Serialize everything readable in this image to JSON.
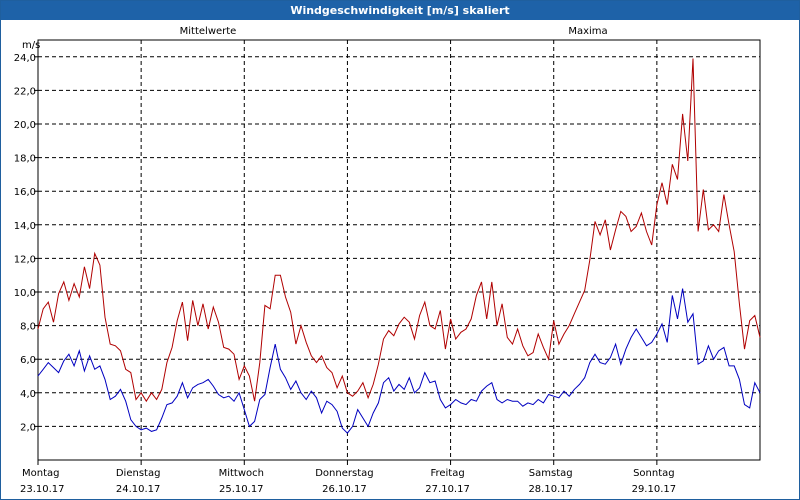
{
  "window": {
    "title": "Windgeschwindigkeit [m/s] skaliert"
  },
  "chart_data": {
    "type": "line",
    "title": "Windgeschwindigkeit [m/s] skaliert",
    "ylabel": "m/s",
    "ylim": [
      0,
      25
    ],
    "grid": true,
    "yticks": [
      2,
      4,
      6,
      8,
      10,
      12,
      14,
      16,
      18,
      20,
      22,
      24
    ],
    "ytick_labels": [
      "2,0",
      "4,0",
      "6,0",
      "8,0",
      "10,0",
      "12,0",
      "14,0",
      "16,0",
      "18,0",
      "20,0",
      "22,0",
      "24,0"
    ],
    "days": [
      {
        "weekday": "Montag",
        "date": "23.10.17"
      },
      {
        "weekday": "Dienstag",
        "date": "24.10.17"
      },
      {
        "weekday": "Mittwoch",
        "date": "25.10.17"
      },
      {
        "weekday": "Donnerstag",
        "date": "26.10.17"
      },
      {
        "weekday": "Freitag",
        "date": "27.10.17"
      },
      {
        "weekday": "Samstag",
        "date": "28.10.17"
      },
      {
        "weekday": "Sonntag",
        "date": "29.10.17"
      }
    ],
    "xlim": [
      0,
      7
    ],
    "series": [
      {
        "name": "Mittelwerte",
        "color": "#0000c0",
        "x": [
          0,
          0.05,
          0.1,
          0.15,
          0.2,
          0.25,
          0.3,
          0.35,
          0.4,
          0.45,
          0.5,
          0.55,
          0.6,
          0.65,
          0.7,
          0.75,
          0.8,
          0.85,
          0.9,
          0.95,
          1.0,
          1.05,
          1.1,
          1.15,
          1.2,
          1.25,
          1.3,
          1.35,
          1.4,
          1.45,
          1.5,
          1.55,
          1.6,
          1.65,
          1.7,
          1.75,
          1.8,
          1.85,
          1.9,
          1.95,
          2.0,
          2.05,
          2.1,
          2.15,
          2.2,
          2.25,
          2.3,
          2.35,
          2.4,
          2.45,
          2.5,
          2.55,
          2.6,
          2.65,
          2.7,
          2.75,
          2.8,
          2.85,
          2.9,
          2.95,
          3.0,
          3.05,
          3.1,
          3.15,
          3.2,
          3.25,
          3.3,
          3.35,
          3.4,
          3.45,
          3.5,
          3.55,
          3.6,
          3.65,
          3.7,
          3.75,
          3.8,
          3.85,
          3.9,
          3.95,
          4.0,
          4.05,
          4.1,
          4.15,
          4.2,
          4.25,
          4.3,
          4.35,
          4.4,
          4.45,
          4.5,
          4.55,
          4.6,
          4.65,
          4.7,
          4.75,
          4.8,
          4.85,
          4.9,
          4.95,
          5.0,
          5.05,
          5.1,
          5.15,
          5.2,
          5.25,
          5.3,
          5.35,
          5.4,
          5.45,
          5.5,
          5.55,
          5.6,
          5.65,
          5.7,
          5.75,
          5.8,
          5.85,
          5.9,
          5.95,
          6.0,
          6.05,
          6.1,
          6.15,
          6.2,
          6.25,
          6.3,
          6.35,
          6.4,
          6.45,
          6.5,
          6.55,
          6.6,
          6.65,
          6.7,
          6.75,
          6.8,
          6.85,
          6.9,
          6.95,
          7.0
        ],
        "values": [
          5.0,
          5.4,
          5.8,
          5.5,
          5.2,
          5.9,
          6.3,
          5.6,
          6.5,
          5.3,
          6.2,
          5.4,
          5.6,
          4.8,
          3.6,
          3.8,
          4.2,
          3.5,
          2.4,
          2.0,
          1.8,
          1.9,
          1.7,
          1.8,
          2.5,
          3.3,
          3.4,
          3.8,
          4.6,
          3.7,
          4.3,
          4.5,
          4.6,
          4.8,
          4.4,
          3.9,
          3.7,
          3.8,
          3.5,
          4.0,
          3.0,
          2.0,
          2.3,
          3.6,
          3.9,
          5.5,
          6.9,
          5.4,
          4.9,
          4.2,
          4.7,
          4.0,
          3.6,
          4.1,
          3.7,
          2.8,
          3.5,
          3.3,
          2.9,
          1.9,
          1.6,
          2.0,
          3.0,
          2.5,
          2.0,
          2.8,
          3.4,
          4.6,
          4.9,
          4.1,
          4.5,
          4.2,
          4.9,
          4.0,
          4.3,
          5.2,
          4.6,
          4.7,
          3.6,
          3.1,
          3.3,
          3.6,
          3.4,
          3.3,
          3.6,
          3.5,
          4.1,
          4.4,
          4.6,
          3.6,
          3.4,
          3.6,
          3.5,
          3.5,
          3.2,
          3.4,
          3.3,
          3.6,
          3.4,
          3.9,
          3.8,
          3.7,
          4.1,
          3.8,
          4.2,
          4.5,
          4.9,
          5.8,
          6.3,
          5.8,
          5.7,
          6.1,
          6.9,
          5.7,
          6.6,
          7.3,
          7.8,
          7.3,
          6.8,
          7.0,
          7.5,
          8.1,
          7.0,
          9.8,
          8.4,
          10.2,
          8.2,
          8.7,
          5.7,
          5.9,
          6.8,
          6.0,
          6.5,
          6.7,
          5.6,
          5.6,
          4.8,
          3.3,
          3.1,
          4.6,
          4.0
        ]
      },
      {
        "name": "Maxima",
        "color": "#b00000",
        "x": [
          0,
          0.05,
          0.1,
          0.15,
          0.2,
          0.25,
          0.3,
          0.35,
          0.4,
          0.45,
          0.5,
          0.55,
          0.6,
          0.65,
          0.7,
          0.75,
          0.8,
          0.85,
          0.9,
          0.95,
          1.0,
          1.05,
          1.1,
          1.15,
          1.2,
          1.25,
          1.3,
          1.35,
          1.4,
          1.45,
          1.5,
          1.55,
          1.6,
          1.65,
          1.7,
          1.75,
          1.8,
          1.85,
          1.9,
          1.95,
          2.0,
          2.05,
          2.1,
          2.15,
          2.2,
          2.25,
          2.3,
          2.35,
          2.4,
          2.45,
          2.5,
          2.55,
          2.6,
          2.65,
          2.7,
          2.75,
          2.8,
          2.85,
          2.9,
          2.95,
          3.0,
          3.05,
          3.1,
          3.15,
          3.2,
          3.25,
          3.3,
          3.35,
          3.4,
          3.45,
          3.5,
          3.55,
          3.6,
          3.65,
          3.7,
          3.75,
          3.8,
          3.85,
          3.9,
          3.95,
          4.0,
          4.05,
          4.1,
          4.15,
          4.2,
          4.25,
          4.3,
          4.35,
          4.4,
          4.45,
          4.5,
          4.55,
          4.6,
          4.65,
          4.7,
          4.75,
          4.8,
          4.85,
          4.9,
          4.95,
          5.0,
          5.05,
          5.1,
          5.15,
          5.2,
          5.25,
          5.3,
          5.35,
          5.4,
          5.45,
          5.5,
          5.55,
          5.6,
          5.65,
          5.7,
          5.75,
          5.8,
          5.85,
          5.9,
          5.95,
          6.0,
          6.05,
          6.1,
          6.15,
          6.2,
          6.25,
          6.3,
          6.35,
          6.4,
          6.45,
          6.5,
          6.55,
          6.6,
          6.65,
          6.7,
          6.75,
          6.8,
          6.85,
          6.9,
          6.95,
          7.0
        ],
        "values": [
          7.8,
          9.0,
          9.4,
          8.2,
          9.9,
          10.6,
          9.5,
          10.5,
          9.7,
          11.5,
          10.2,
          12.3,
          11.6,
          8.5,
          6.9,
          6.8,
          6.5,
          5.4,
          5.2,
          3.6,
          4.0,
          3.5,
          4.0,
          3.6,
          4.2,
          5.8,
          6.7,
          8.3,
          9.4,
          7.1,
          9.5,
          8.0,
          9.3,
          7.8,
          9.1,
          8.2,
          6.7,
          6.6,
          6.3,
          4.8,
          5.6,
          5.0,
          3.5,
          5.8,
          9.2,
          9.0,
          11.0,
          11.0,
          9.7,
          8.8,
          6.9,
          8.0,
          7.0,
          6.2,
          5.8,
          6.2,
          5.5,
          5.2,
          4.3,
          5.0,
          4.0,
          3.8,
          4.1,
          4.6,
          3.7,
          4.5,
          5.7,
          7.2,
          7.7,
          7.4,
          8.1,
          8.5,
          8.2,
          7.2,
          8.6,
          9.4,
          8.0,
          7.8,
          8.9,
          6.6,
          8.4,
          7.2,
          7.6,
          7.8,
          8.4,
          9.8,
          10.6,
          8.4,
          10.6,
          8.0,
          9.3,
          7.3,
          6.9,
          7.8,
          6.8,
          6.2,
          6.4,
          7.5,
          6.7,
          6.0,
          8.3,
          6.9,
          7.5,
          8.0,
          8.7,
          9.4,
          10.1,
          11.9,
          14.2,
          13.4,
          14.3,
          12.5,
          13.7,
          14.8,
          14.5,
          13.6,
          13.9,
          14.7,
          13.6,
          12.8,
          15.2,
          16.5,
          15.2,
          17.6,
          16.7,
          20.6,
          17.8,
          23.9,
          13.6,
          16.1,
          13.7,
          14.0,
          13.6,
          15.8,
          14.0,
          12.4,
          9.3,
          6.6,
          8.3,
          8.6,
          7.3
        ]
      }
    ]
  }
}
